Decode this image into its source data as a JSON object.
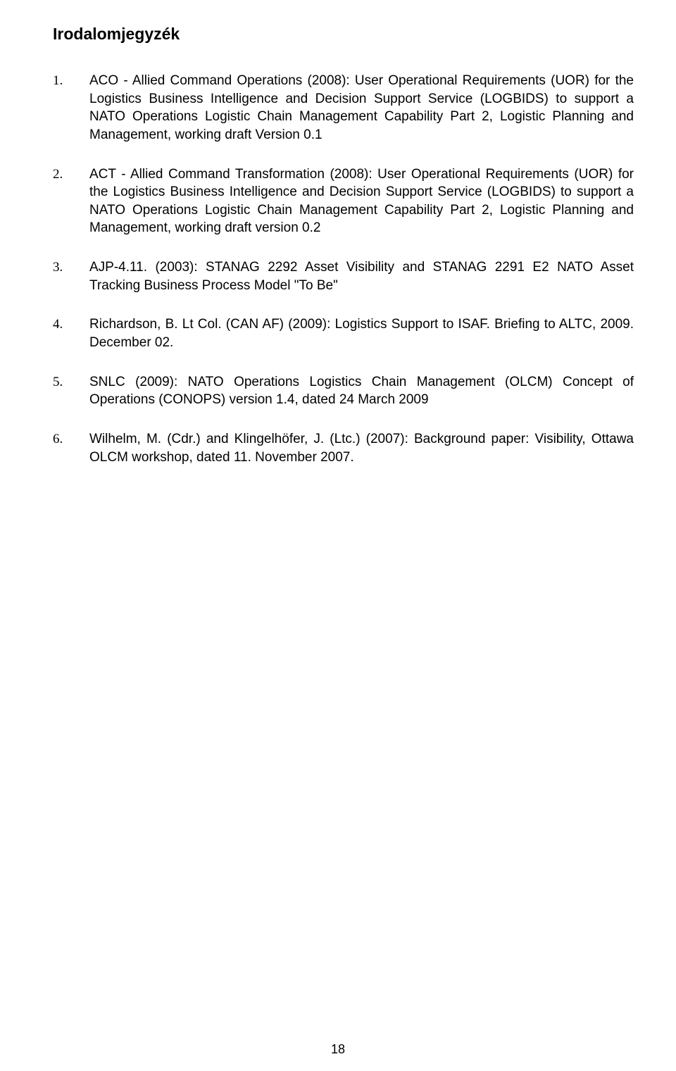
{
  "title": "Irodalomjegyzék",
  "references": [
    {
      "num": "1.",
      "text": "ACO - Allied Command Operations (2008): User Operational Requirements (UOR) for the Logistics Business Intelligence and Decision Support Service (LOGBIDS) to support a NATO Operations Logistic Chain Management Capability Part 2, Logistic Planning and Management, working draft Version 0.1"
    },
    {
      "num": "2.",
      "text": "ACT - Allied Command Transformation (2008): User Operational Requirements (UOR) for the Logistics Business Intelligence and Decision Support Service (LOGBIDS) to support a NATO Operations Logistic Chain Management Capability Part 2, Logistic Planning and Management, working draft version 0.2"
    },
    {
      "num": "3.",
      "text": "AJP-4.11. (2003): STANAG 2292 Asset Visibility and STANAG 2291 E2 NATO Asset Tracking Business Process Model \"To Be\""
    },
    {
      "num": "4.",
      "text": "Richardson, B. Lt Col. (CAN AF) (2009): Logistics Support to ISAF. Briefing to ALTC, 2009. December 02."
    },
    {
      "num": "5.",
      "text": "SNLC (2009): NATO Operations Logistics Chain Management (OLCM) Concept of Operations (CONOPS) version 1.4, dated 24 March 2009"
    },
    {
      "num": "6.",
      "text": "Wilhelm, M. (Cdr.) and Klingelhöfer, J. (Ltc.) (2007): Background paper: Visibility, Ottawa OLCM workshop, dated 11. November 2007."
    }
  ],
  "page_number": "18"
}
